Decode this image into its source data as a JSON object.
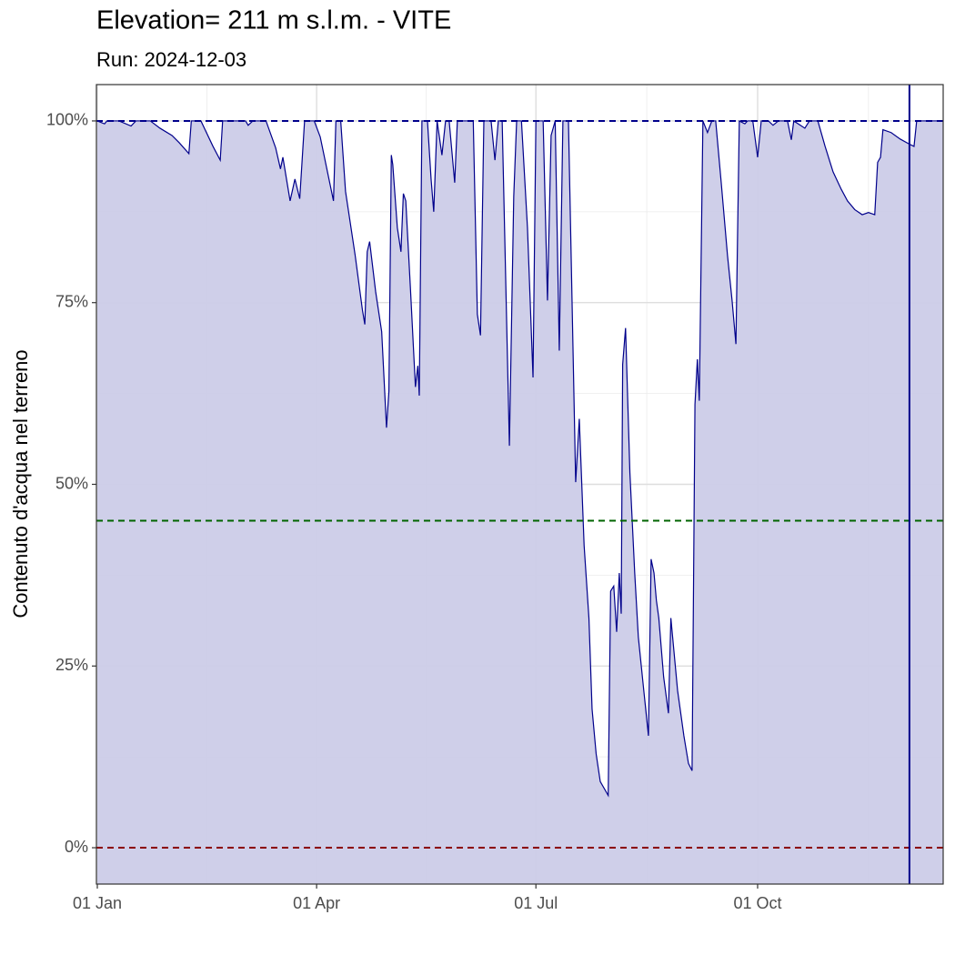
{
  "chart_data": {
    "type": "area",
    "title": "Elevation= 211 m s.l.m. - VITE",
    "subtitle": "Run: 2024-12-03",
    "ylabel": "Contenuto d'acqua nel terreno",
    "line_color": "#00008b",
    "fill_color": "#cccce8",
    "xlim": [
      0,
      351
    ],
    "ylim": [
      -5,
      105
    ],
    "xticks": [
      {
        "value": 0,
        "label": "01 Jan"
      },
      {
        "value": 91,
        "label": "01 Apr"
      },
      {
        "value": 182,
        "label": "01 Jul"
      },
      {
        "value": 274,
        "label": "01 Oct"
      }
    ],
    "xminor": [
      45.5,
      136.5,
      228,
      320
    ],
    "yticks": [
      {
        "value": 0,
        "label": "0%"
      },
      {
        "value": 25,
        "label": "25%"
      },
      {
        "value": 50,
        "label": "50%"
      },
      {
        "value": 75,
        "label": "75%"
      },
      {
        "value": 100,
        "label": "100%"
      }
    ],
    "yminor": [
      12.5,
      37.5,
      62.5,
      87.5
    ],
    "grid": true,
    "hlines": [
      {
        "value": 100,
        "color": "#00008b"
      },
      {
        "value": 45,
        "color": "#006400"
      },
      {
        "value": 0,
        "color": "#8b0000"
      }
    ],
    "vline": {
      "value": 337,
      "color": "#00008b"
    },
    "x": [
      0,
      3,
      4,
      9,
      14,
      16,
      22,
      26,
      31,
      34,
      38,
      39,
      43,
      48,
      51,
      52,
      61.5,
      62.6,
      64.5,
      70,
      74,
      76,
      77,
      80,
      82,
      84,
      86,
      90,
      92.5,
      98,
      99,
      101,
      103,
      107,
      110,
      111,
      112,
      113,
      115.5,
      118,
      120,
      121,
      122,
      122.6,
      124.5,
      126,
      127,
      128,
      130,
      132,
      133,
      133.6,
      134.7,
      137,
      138.5,
      139.6,
      141,
      143,
      144.5,
      146,
      148.3,
      149.4,
      156,
      157.7,
      159,
      160.4,
      163.4,
      165,
      166.4,
      168,
      171,
      172.8,
      174,
      176,
      178.5,
      180.8,
      182,
      185,
      186.8,
      188.3,
      190,
      191.7,
      193.2,
      195.5,
      198.5,
      200,
      202,
      204,
      205.3,
      207,
      208.7,
      212,
      213,
      214.3,
      215.5,
      216.6,
      217.4,
      218,
      219.2,
      221,
      223,
      224.5,
      226.4,
      228.7,
      229.8,
      231,
      232,
      233,
      235,
      237,
      238,
      240.8,
      243.4,
      245.3,
      246.8,
      248,
      249,
      249.8,
      251.3,
      253.2,
      255,
      256.6,
      258.9,
      261.5,
      263.4,
      265,
      266.4,
      268.7,
      269.8,
      272,
      274,
      275.5,
      278.5,
      280.4,
      282.6,
      286.4,
      288,
      289,
      293.6,
      295.5,
      299,
      302,
      305.3,
      308.7,
      311.3,
      314.3,
      317.4,
      320,
      322.6,
      323.8,
      325,
      326,
      329.4,
      333.2,
      337,
      338.9,
      340,
      344.5,
      351
    ],
    "values": [
      100,
      99.6,
      100,
      100,
      99.3,
      100,
      100,
      99,
      98,
      97,
      95.5,
      100,
      100,
      96.5,
      94.6,
      100,
      100,
      99.4,
      100,
      100,
      96.3,
      93.4,
      95,
      89,
      92,
      89.3,
      100,
      100,
      97.8,
      89,
      100,
      100,
      90.3,
      81.5,
      74,
      72,
      82,
      83.4,
      76.5,
      71,
      57.8,
      62.8,
      95.3,
      94,
      85.3,
      82,
      90,
      89,
      76.5,
      63.4,
      66.3,
      62.2,
      100,
      100,
      92,
      87.5,
      100,
      95.3,
      100,
      100,
      91.5,
      100,
      100,
      73.4,
      70.5,
      100,
      100,
      94.6,
      100,
      100,
      55.3,
      89.6,
      100,
      100,
      85.3,
      64.7,
      100,
      100,
      75.3,
      98,
      100,
      68.4,
      100,
      100,
      50.3,
      59,
      41.6,
      31.6,
      19.1,
      12.9,
      9.1,
      7.2,
      35.3,
      36,
      29.7,
      37.8,
      32.2,
      66.5,
      71.5,
      51.6,
      37.8,
      29,
      22.8,
      15.4,
      39.7,
      37.8,
      34,
      31.6,
      23.5,
      18.5,
      31.6,
      21.6,
      15.4,
      11.6,
      10.6,
      61,
      67.2,
      61.5,
      100,
      98.4,
      100,
      100,
      91.5,
      81.5,
      75.3,
      69.3,
      100,
      99.6,
      100,
      100,
      95,
      100,
      100,
      99.4,
      100,
      100,
      97.4,
      100,
      99,
      100,
      100,
      96.5,
      93,
      90.6,
      89,
      87.8,
      87.1,
      87.4,
      87.1,
      94.3,
      95,
      98.8,
      98.4,
      97.5,
      96.8,
      96.5,
      100,
      100,
      100
    ]
  }
}
